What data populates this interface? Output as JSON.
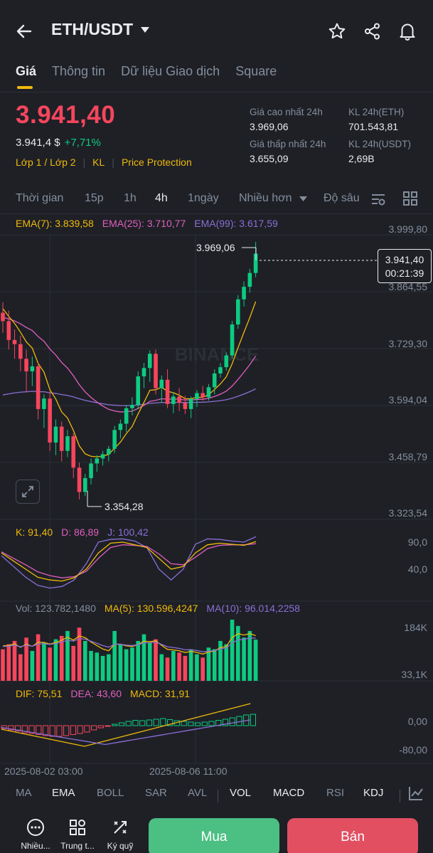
{
  "header": {
    "title": "ETH/USDT",
    "back_icon": "back-arrow-icon",
    "favorite_icon": "star-icon",
    "share_icon": "share-icon",
    "alert_icon": "bell-icon"
  },
  "tabs": [
    {
      "label": "Giá",
      "active": true
    },
    {
      "label": "Thông tin"
    },
    {
      "label": "Dữ liệu Giao dịch"
    },
    {
      "label": "Square"
    }
  ],
  "price": {
    "last": "3.941,40",
    "usd": "3.941,4 $",
    "change": "+7,71%",
    "order_book_link": "Lớp 1 / Lớp 2",
    "kl_link": "KL",
    "protection_link": "Price Protection"
  },
  "stats": {
    "high_label": "Giá cao nhất 24h",
    "high": "3.969,06",
    "low_label": "Giá thấp nhất 24h",
    "low": "3.655,09",
    "vol_eth_label": "KL 24h(ETH)",
    "vol_eth": "701.543,81",
    "vol_usdt_label": "KL 24h(USDT)",
    "vol_usdt": "2,69B"
  },
  "intervals": {
    "time_label": "Thời gian",
    "i15m": "15p",
    "i1h": "1h",
    "i4h": "4h",
    "i1d": "1ngày",
    "more": "Nhiều hơn",
    "depth": "Độ sâu",
    "active": "4h"
  },
  "ema_legend": {
    "ema7": "EMA(7): 3.839,58",
    "ema25": "EMA(25): 3.710,77",
    "ema99": "EMA(99): 3.617,59"
  },
  "price_axis": [
    "3.999,80",
    "3.864,55",
    "3.729,30",
    "3.594,04",
    "3.458,79",
    "3.323,54"
  ],
  "chart_labels": {
    "high_marker": "3.969,06",
    "low_marker": "3.354,28",
    "watermark": "BINANCE"
  },
  "price_box": {
    "price": "3.941,40",
    "countdown": "00:21:39"
  },
  "kdj_legend": {
    "k": "K: 91,40",
    "d": "D: 86,89",
    "j": "J: 100,42"
  },
  "kdj_axis": [
    "90,0",
    "40,0"
  ],
  "vol_legend": {
    "vol": "Vol: 123.782,1480",
    "ma5": "MA(5): 130.596,4247",
    "ma10": "MA(10): 96.014,2258"
  },
  "vol_axis": [
    "184K",
    "33,1K"
  ],
  "macd_legend": {
    "dif": "DIF: 75,51",
    "dea": "DEA: 43,60",
    "macd": "MACD: 31,91"
  },
  "macd_axis": [
    "0,00",
    "-80,00"
  ],
  "time_axis": [
    "2025-08-02 03:00",
    "2025-08-06 11:00"
  ],
  "indicator_tabs": {
    "ma": "MA",
    "ema": "EMA",
    "boll": "BOLL",
    "sar": "SAR",
    "avl": "AVL",
    "vol": "VOL",
    "macd": "MACD",
    "rsi": "RSI",
    "kdj": "KDJ"
  },
  "footer": {
    "more": "Nhiều...",
    "strategy": "Trung t...",
    "margin": "Ký quỹ",
    "buy": "Mua",
    "sell": "Bán"
  },
  "colors": {
    "up": "#0ecb81",
    "down": "#f6465d",
    "accent": "#f0b90b",
    "ema7": "#f0b90b",
    "ema25": "#e05fbf",
    "ema99": "#8c6fd6"
  },
  "candles": [
    [
      3800,
      3825,
      3752,
      3780
    ],
    [
      3780,
      3805,
      3712,
      3735
    ],
    [
      3735,
      3760,
      3690,
      3725
    ],
    [
      3725,
      3745,
      3660,
      3690
    ],
    [
      3690,
      3712,
      3610,
      3660
    ],
    [
      3660,
      3695,
      3625,
      3672
    ],
    [
      3672,
      3682,
      3545,
      3570
    ],
    [
      3570,
      3605,
      3525,
      3595
    ],
    [
      3595,
      3612,
      3470,
      3490
    ],
    [
      3490,
      3545,
      3460,
      3528
    ],
    [
      3528,
      3540,
      3445,
      3470
    ],
    [
      3470,
      3520,
      3455,
      3505
    ],
    [
      3505,
      3512,
      3405,
      3430
    ],
    [
      3430,
      3442,
      3354,
      3372
    ],
    [
      3372,
      3415,
      3362,
      3405
    ],
    [
      3405,
      3452,
      3390,
      3440
    ],
    [
      3440,
      3460,
      3420,
      3452
    ],
    [
      3452,
      3470,
      3435,
      3462
    ],
    [
      3462,
      3482,
      3445,
      3475
    ],
    [
      3475,
      3530,
      3465,
      3520
    ],
    [
      3520,
      3545,
      3500,
      3535
    ],
    [
      3535,
      3580,
      3515,
      3572
    ],
    [
      3572,
      3598,
      3555,
      3580
    ],
    [
      3580,
      3660,
      3570,
      3648
    ],
    [
      3648,
      3680,
      3620,
      3668
    ],
    [
      3668,
      3710,
      3635,
      3702
    ],
    [
      3702,
      3712,
      3605,
      3620
    ],
    [
      3620,
      3650,
      3585,
      3640
    ],
    [
      3640,
      3665,
      3572,
      3582
    ],
    [
      3582,
      3610,
      3560,
      3600
    ],
    [
      3600,
      3620,
      3565,
      3585
    ],
    [
      3585,
      3602,
      3558,
      3570
    ],
    [
      3570,
      3600,
      3548,
      3594
    ],
    [
      3594,
      3615,
      3575,
      3608
    ],
    [
      3608,
      3625,
      3590,
      3598
    ],
    [
      3598,
      3630,
      3590,
      3622
    ],
    [
      3622,
      3665,
      3605,
      3655
    ],
    [
      3655,
      3680,
      3645,
      3670
    ],
    [
      3670,
      3705,
      3662,
      3698
    ],
    [
      3698,
      3780,
      3690,
      3772
    ],
    [
      3772,
      3842,
      3762,
      3832
    ],
    [
      3832,
      3875,
      3815,
      3862
    ],
    [
      3862,
      3905,
      3848,
      3895
    ],
    [
      3895,
      3969,
      3885,
      3941
    ]
  ],
  "volumes": [
    95,
    110,
    120,
    80,
    130,
    90,
    140,
    115,
    100,
    125,
    135,
    150,
    105,
    160,
    120,
    90,
    85,
    75,
    80,
    150,
    110,
    95,
    100,
    120,
    140,
    115,
    125,
    80,
    70,
    90,
    85,
    75,
    95,
    80,
    70,
    100,
    95,
    120,
    110,
    184,
    165,
    130,
    150,
    124
  ],
  "kdj_k": [
    70,
    55,
    40,
    25,
    20,
    18,
    24,
    40,
    70,
    88,
    90,
    85,
    80,
    60,
    40,
    45,
    70,
    85,
    88,
    86,
    84,
    91
  ],
  "kdj_d": [
    72,
    60,
    48,
    35,
    28,
    24,
    26,
    36,
    60,
    80,
    85,
    84,
    82,
    68,
    50,
    48,
    62,
    78,
    84,
    85,
    85,
    87
  ],
  "kdj_j": [
    65,
    45,
    25,
    10,
    5,
    8,
    20,
    50,
    90,
    95,
    96,
    92,
    80,
    40,
    20,
    40,
    86,
    96,
    95,
    92,
    90,
    100
  ],
  "macd_hist": [
    -8,
    -12,
    -15,
    -20,
    -22,
    -25,
    -28,
    -30,
    -30,
    -28,
    -25,
    -22,
    -18,
    -12,
    -6,
    -2,
    4,
    8,
    12,
    15,
    14,
    16,
    18,
    20,
    17,
    14,
    12,
    10,
    8,
    10,
    12,
    15,
    18,
    22,
    26,
    30,
    32
  ]
}
